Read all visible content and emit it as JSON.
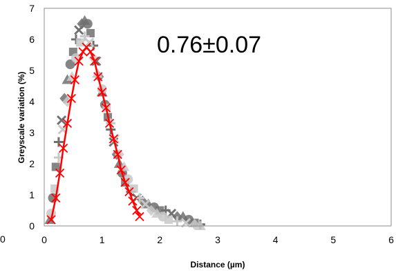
{
  "chart_data": {
    "type": "scatter",
    "title": "",
    "xlabel": "Distance (µm)",
    "ylabel": "Greyscale variation (%)",
    "xlim": [
      0,
      6
    ],
    "ylim": [
      0,
      7
    ],
    "x_ticks": [
      "0",
      "1",
      "2",
      "3",
      "4",
      "5",
      "6"
    ],
    "y_ticks": [
      "0",
      "1",
      "2",
      "3",
      "4",
      "5",
      "6",
      "7"
    ],
    "left_edge_label": "0",
    "annotation": "0.76±0.07",
    "grid": false,
    "legend": "none",
    "series": [
      {
        "color": "#707070",
        "marker": "scatter-band",
        "points": [
          [
            0.1,
            0.2
          ],
          [
            0.15,
            0.9
          ],
          [
            0.2,
            1.9
          ],
          [
            0.25,
            2.7
          ],
          [
            0.3,
            3.4
          ],
          [
            0.35,
            4.1
          ],
          [
            0.4,
            4.7
          ],
          [
            0.45,
            5.2
          ],
          [
            0.5,
            5.6
          ],
          [
            0.55,
            6.0
          ],
          [
            0.6,
            6.3
          ],
          [
            0.65,
            6.5
          ],
          [
            0.7,
            6.6
          ],
          [
            0.75,
            6.5
          ],
          [
            0.8,
            6.2
          ],
          [
            0.85,
            5.8
          ],
          [
            0.9,
            5.3
          ],
          [
            0.95,
            4.8
          ],
          [
            1.0,
            4.3
          ],
          [
            1.05,
            3.9
          ],
          [
            1.1,
            3.5
          ],
          [
            1.15,
            3.1
          ],
          [
            1.2,
            2.7
          ],
          [
            1.25,
            2.3
          ],
          [
            1.3,
            2.0
          ],
          [
            1.35,
            1.7
          ],
          [
            1.4,
            1.4
          ],
          [
            1.5,
            1.1
          ],
          [
            1.6,
            0.9
          ],
          [
            1.7,
            0.8
          ],
          [
            1.8,
            0.7
          ],
          [
            1.9,
            0.6
          ],
          [
            2.0,
            0.5
          ],
          [
            2.1,
            0.5
          ],
          [
            2.2,
            0.4
          ],
          [
            2.3,
            0.3
          ],
          [
            2.4,
            0.3
          ],
          [
            2.5,
            0.2
          ],
          [
            2.6,
            0.1
          ],
          [
            2.7,
            0.05
          ]
        ]
      },
      {
        "color": "#c8c8c8",
        "marker": "scatter-band",
        "points": [
          [
            0.12,
            0.4
          ],
          [
            0.18,
            1.2
          ],
          [
            0.25,
            2.2
          ],
          [
            0.32,
            3.1
          ],
          [
            0.4,
            4.0
          ],
          [
            0.48,
            4.8
          ],
          [
            0.55,
            5.4
          ],
          [
            0.62,
            5.9
          ],
          [
            0.7,
            6.1
          ],
          [
            0.78,
            5.9
          ],
          [
            0.85,
            5.4
          ],
          [
            0.92,
            4.9
          ],
          [
            1.0,
            4.4
          ],
          [
            1.08,
            3.8
          ],
          [
            1.15,
            3.3
          ],
          [
            1.22,
            2.8
          ],
          [
            1.3,
            2.3
          ],
          [
            1.38,
            1.9
          ],
          [
            1.45,
            1.5
          ],
          [
            1.55,
            1.2
          ],
          [
            1.65,
            0.9
          ],
          [
            1.75,
            0.7
          ],
          [
            1.85,
            0.5
          ],
          [
            1.95,
            0.4
          ],
          [
            2.05,
            0.3
          ],
          [
            2.15,
            0.2
          ],
          [
            2.3,
            0.15
          ],
          [
            2.45,
            0.1
          ],
          [
            2.6,
            0.05
          ],
          [
            2.7,
            0.0
          ]
        ]
      },
      {
        "color": "#ff0000",
        "marker": "x-line",
        "points": [
          [
            0.12,
            0.2
          ],
          [
            0.2,
            0.9
          ],
          [
            0.27,
            1.7
          ],
          [
            0.33,
            2.5
          ],
          [
            0.4,
            3.3
          ],
          [
            0.47,
            4.1
          ],
          [
            0.53,
            4.7
          ],
          [
            0.6,
            5.3
          ],
          [
            0.67,
            5.6
          ],
          [
            0.73,
            5.75
          ],
          [
            0.8,
            5.6
          ],
          [
            0.87,
            5.3
          ],
          [
            0.93,
            4.8
          ],
          [
            1.0,
            4.3
          ],
          [
            1.07,
            3.8
          ],
          [
            1.13,
            3.3
          ],
          [
            1.2,
            2.8
          ],
          [
            1.27,
            2.3
          ],
          [
            1.33,
            1.8
          ],
          [
            1.4,
            1.4
          ],
          [
            1.47,
            1.1
          ],
          [
            1.53,
            0.8
          ],
          [
            1.6,
            0.5
          ],
          [
            1.65,
            0.3
          ]
        ]
      }
    ]
  }
}
